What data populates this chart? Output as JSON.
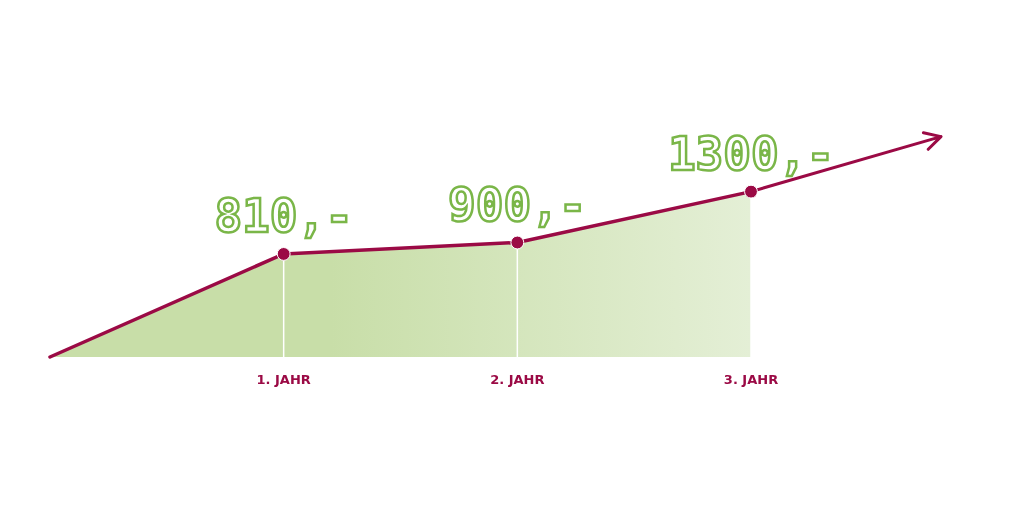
{
  "chart_data": {
    "type": "area",
    "categories": [
      null,
      "1. JAHR",
      "2. JAHR",
      "3. JAHR"
    ],
    "series": [
      {
        "color": "#9b0a45",
        "values": [
          0,
          810,
          900,
          1300
        ],
        "value_labels": [
          null,
          "810,-",
          "900,-",
          "1300,-"
        ]
      }
    ],
    "marker": "circle",
    "grid": "x"
  }
}
